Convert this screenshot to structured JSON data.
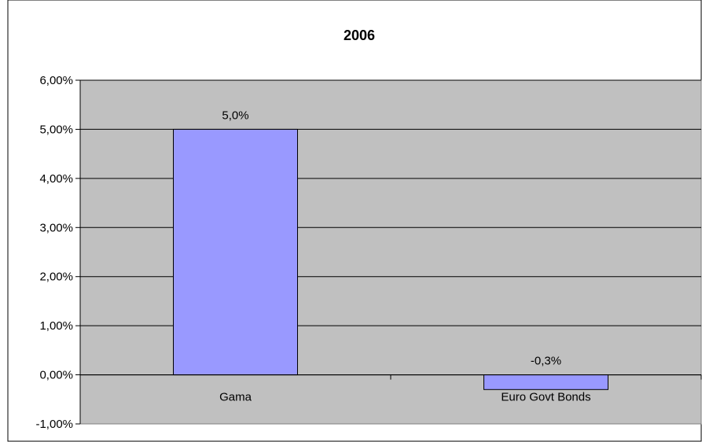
{
  "chart_data": {
    "type": "bar",
    "title": "2006",
    "categories": [
      "Gama",
      "Euro Govt Bonds"
    ],
    "values": [
      5.0,
      -0.3
    ],
    "data_labels": [
      "5,0%",
      "-0,3%"
    ],
    "ylim": [
      -1,
      6
    ],
    "yticks": [
      6,
      5,
      4,
      3,
      2,
      1,
      0,
      -1
    ],
    "ytick_labels": [
      "6,00%",
      "5,00%",
      "4,00%",
      "3,00%",
      "2,00%",
      "1,00%",
      "0,00%",
      "-1,00%"
    ],
    "xlabel": "",
    "ylabel": "",
    "grid": true,
    "legend": "none",
    "colors": {
      "bar_fill": "#9999ff",
      "plot_background": "#c0c0c0",
      "gridline": "#000000"
    }
  }
}
